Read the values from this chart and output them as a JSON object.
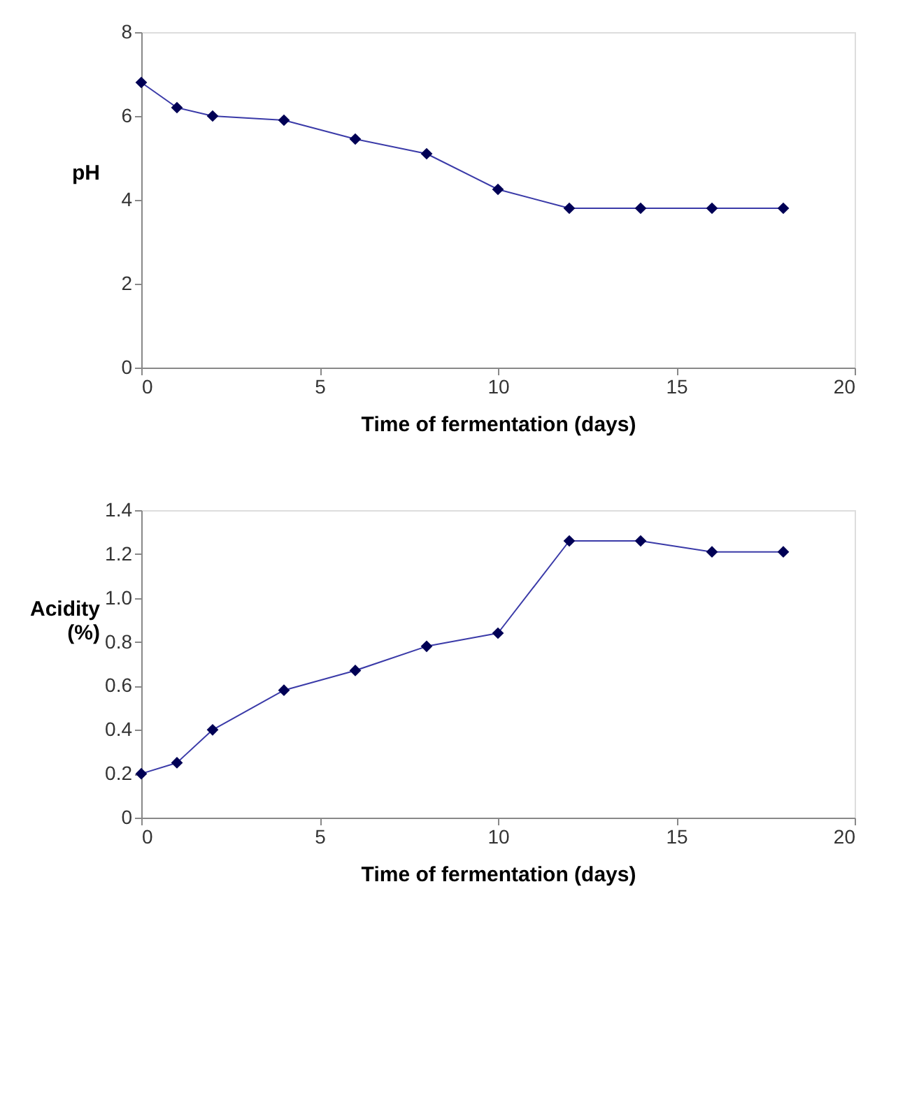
{
  "chart_data": [
    {
      "type": "line",
      "xlabel": "Time of fermentation (days)",
      "ylabel": "pH",
      "x": [
        0,
        1,
        2,
        4,
        6,
        8,
        10,
        12,
        14,
        16,
        18
      ],
      "series": [
        {
          "color": "#3a3aa8",
          "values": [
            6.8,
            6.2,
            6.0,
            5.9,
            5.45,
            5.1,
            4.25,
            3.8,
            3.8,
            3.8,
            3.8
          ]
        }
      ],
      "xlim": [
        0,
        20
      ],
      "xticks": [
        0,
        5,
        10,
        15,
        20
      ],
      "ylim": [
        0,
        8
      ],
      "yticks": [
        0,
        2,
        4,
        6,
        8
      ],
      "grid": false,
      "marker": "diamond",
      "line_style": "solid"
    },
    {
      "type": "line",
      "xlabel": "Time of fermentation (days)",
      "ylabel": "Acidity (%)",
      "x": [
        0,
        1,
        2,
        4,
        6,
        8,
        10,
        12,
        14,
        16,
        18
      ],
      "series": [
        {
          "color": "#3a3aa8",
          "values": [
            0.2,
            0.25,
            0.4,
            0.58,
            0.67,
            0.78,
            0.84,
            1.26,
            1.26,
            1.21,
            1.21
          ]
        }
      ],
      "xlim": [
        0,
        20
      ],
      "xticks": [
        0,
        5,
        10,
        15,
        20
      ],
      "ylim": [
        0,
        1.4
      ],
      "yticks": [
        0,
        {
          "value": 0.2,
          "label": "0.2"
        },
        {
          "value": 0.4,
          "label": "0.4"
        },
        {
          "value": 0.6,
          "label": "0.6"
        },
        {
          "value": 0.8,
          "label": "0.8"
        },
        {
          "value": 1.0,
          "label": "1.0"
        },
        {
          "value": 1.2,
          "label": "1.2"
        },
        {
          "value": 1.4,
          "label": "1.4"
        }
      ],
      "grid": false,
      "marker": "diamond",
      "line_style": "solid"
    }
  ]
}
